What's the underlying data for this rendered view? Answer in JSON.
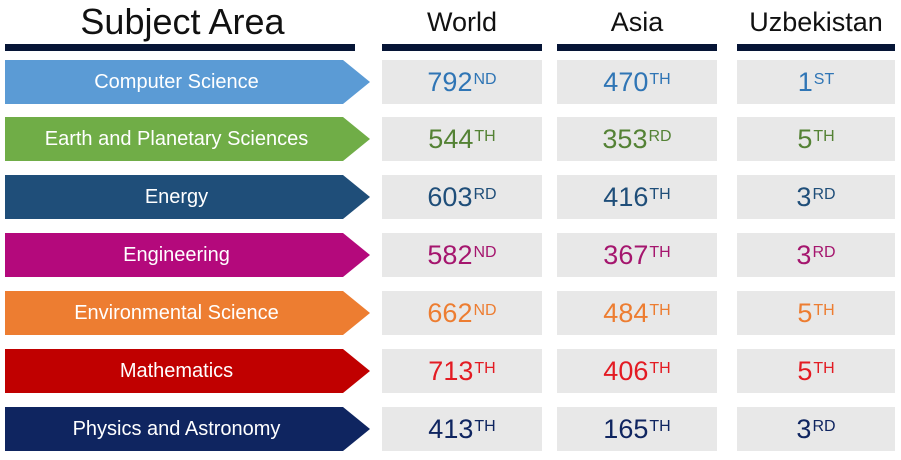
{
  "headers": {
    "subject": "Subject Area",
    "world": "World",
    "asia": "Asia",
    "uzbekistan": "Uzbekistan"
  },
  "colors": {
    "header_bar": "#061536",
    "cell_bg": "#e8e8e8"
  },
  "rows": [
    {
      "subject": "Computer Science",
      "color": "#5b9bd5",
      "text_color": "#2f75b5",
      "world": {
        "num": "792",
        "suf": "ND"
      },
      "asia": {
        "num": "470",
        "suf": "TH"
      },
      "uzbekistan": {
        "num": "1",
        "suf": "ST"
      }
    },
    {
      "subject": "Earth and Planetary Sciences",
      "color": "#70ad47",
      "text_color": "#548235",
      "world": {
        "num": "544",
        "suf": "TH"
      },
      "asia": {
        "num": "353",
        "suf": "RD"
      },
      "uzbekistan": {
        "num": "5",
        "suf": "TH"
      }
    },
    {
      "subject": "Energy",
      "color": "#1f4e79",
      "text_color": "#1f4e79",
      "world": {
        "num": "603",
        "suf": "RD"
      },
      "asia": {
        "num": "416",
        "suf": "TH"
      },
      "uzbekistan": {
        "num": "3",
        "suf": "RD"
      }
    },
    {
      "subject": "Engineering",
      "color": "#b4097c",
      "text_color": "#a5166e",
      "world": {
        "num": "582",
        "suf": "ND"
      },
      "asia": {
        "num": "367",
        "suf": "TH"
      },
      "uzbekistan": {
        "num": "3",
        "suf": "RD"
      }
    },
    {
      "subject": "Environmental Science",
      "color": "#ed7d31",
      "text_color": "#ed7d31",
      "world": {
        "num": "662",
        "suf": "ND"
      },
      "asia": {
        "num": "484",
        "suf": "TH"
      },
      "uzbekistan": {
        "num": "5",
        "suf": "TH"
      }
    },
    {
      "subject": "Mathematics",
      "color": "#c00000",
      "text_color": "#e31b23",
      "world": {
        "num": "713",
        "suf": "TH"
      },
      "asia": {
        "num": "406",
        "suf": "TH"
      },
      "uzbekistan": {
        "num": "5",
        "suf": "TH"
      }
    },
    {
      "subject": "Physics and Astronomy",
      "color": "#0f2560",
      "text_color": "#0f2560",
      "world": {
        "num": "413",
        "suf": "TH"
      },
      "asia": {
        "num": "165",
        "suf": "TH"
      },
      "uzbekistan": {
        "num": "3",
        "suf": "RD"
      }
    }
  ]
}
